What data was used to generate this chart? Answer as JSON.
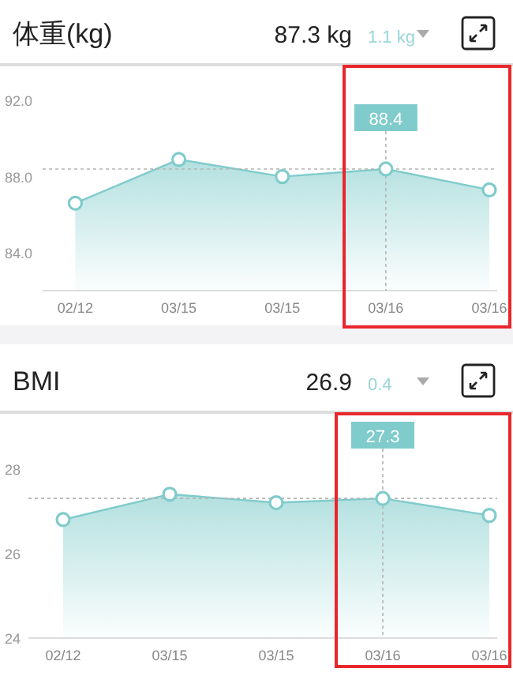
{
  "chart_data": [
    {
      "type": "area",
      "title": "体重(kg)",
      "annotations": [
        "87.3 kg",
        "1.1 kg"
      ],
      "categories": [
        "02/12",
        "03/15",
        "03/15",
        "03/16",
        "03/16"
      ],
      "values": [
        86.6,
        88.9,
        88.0,
        88.4,
        87.3
      ],
      "value_labels": [
        null,
        null,
        null,
        "88.4",
        null
      ],
      "color": "#80cbcb",
      "marker": "circle",
      "ylim": [
        82,
        93.8
      ],
      "yticks": [
        {
          "value": 84,
          "label": "84.0"
        },
        {
          "value": 88,
          "label": "88.0"
        },
        {
          "value": 92,
          "label": "92.0"
        }
      ],
      "ref_lines": [
        {
          "axis": "y",
          "value": 88.4,
          "line_style": "dashed"
        },
        {
          "axis": "x",
          "value": "03/16",
          "line_style": "dashed"
        }
      ]
    },
    {
      "type": "area",
      "title": "BMI",
      "annotations": [
        "26.9",
        "0.4"
      ],
      "categories": [
        "02/12",
        "03/15",
        "03/15",
        "03/16",
        "03/16"
      ],
      "values": [
        26.8,
        27.4,
        27.2,
        27.3,
        26.9
      ],
      "value_labels": [
        null,
        null,
        null,
        "27.3",
        null
      ],
      "color": "#80cbcb",
      "marker": "circle",
      "ylim": [
        24,
        29.3
      ],
      "yticks": [
        24,
        26,
        28
      ],
      "ref_lines": [
        {
          "axis": "y",
          "value": 27.3,
          "line_style": "dashed"
        },
        {
          "axis": "x",
          "value": "03/16",
          "line_style": "dashed"
        }
      ]
    }
  ]
}
